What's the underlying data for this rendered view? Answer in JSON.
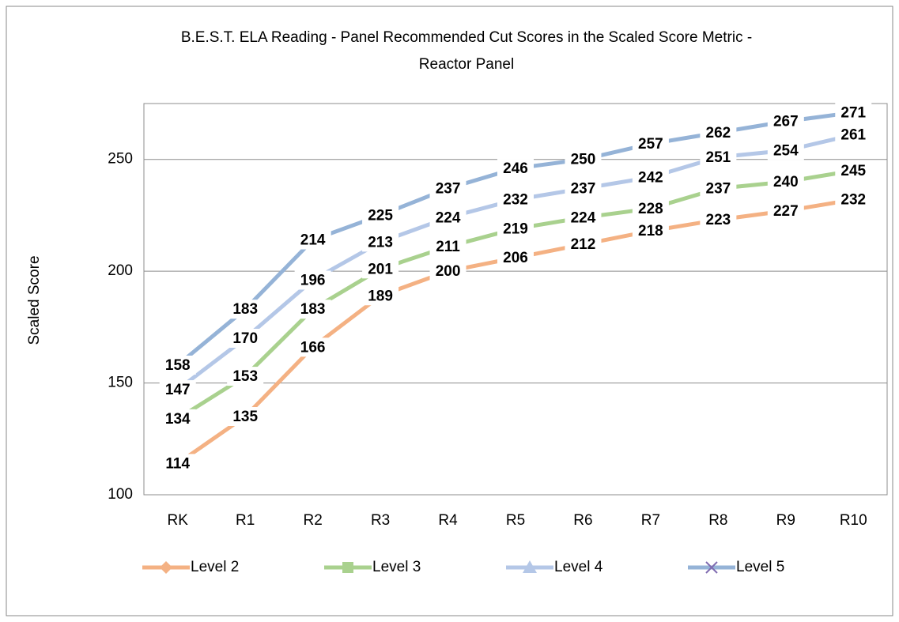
{
  "chart_data": {
    "type": "line",
    "title": [
      "B.E.S.T. ELA Reading - Panel Recommended Cut Scores in the Scaled Score Metric -",
      "Reactor Panel"
    ],
    "ylabel": "Scaled Score",
    "categories": [
      "RK",
      "R1",
      "R2",
      "R3",
      "R4",
      "R5",
      "R6",
      "R7",
      "R8",
      "R9",
      "R10"
    ],
    "series": [
      {
        "name": "Level 2",
        "color": "#f4b183",
        "marker": "diamond",
        "values": [
          114,
          135,
          166,
          189,
          200,
          206,
          212,
          218,
          223,
          227,
          232
        ]
      },
      {
        "name": "Level 3",
        "color": "#a9d18e",
        "marker": "square",
        "values": [
          134,
          153,
          183,
          201,
          211,
          219,
          224,
          228,
          237,
          240,
          245
        ]
      },
      {
        "name": "Level 4",
        "color": "#b4c7e7",
        "marker": "triangle",
        "values": [
          147,
          170,
          196,
          213,
          224,
          232,
          237,
          242,
          251,
          254,
          261
        ]
      },
      {
        "name": "Level 5",
        "color": "#95b3d7",
        "marker": "x",
        "values": [
          158,
          183,
          214,
          225,
          237,
          246,
          250,
          257,
          262,
          267,
          271
        ]
      }
    ],
    "ylim": [
      100,
      275
    ],
    "yticks": [
      100,
      150,
      200,
      250
    ],
    "grid": true,
    "legend": "bottom"
  }
}
